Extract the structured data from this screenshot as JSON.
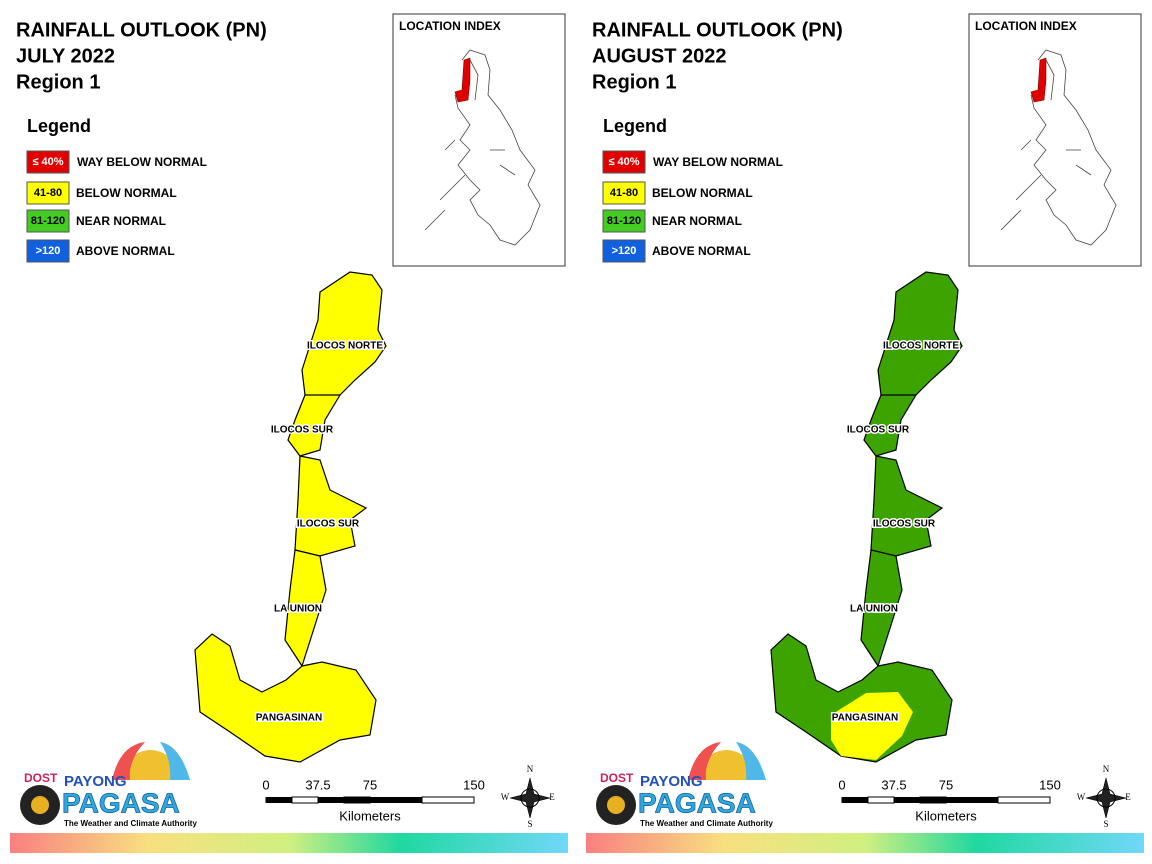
{
  "panels": [
    {
      "title_lines": [
        "RAINFALL OUTLOOK (PN)",
        "JULY 2022",
        "Region 1"
      ],
      "provinces": [
        {
          "name": "ILOCOS NORTE",
          "colors": [
            "#ffff00"
          ]
        },
        {
          "name": "ILOCOS SUR",
          "colors": [
            "#ffff00"
          ]
        },
        {
          "name": "ILOCOS SUR",
          "colors": [
            "#ffff00"
          ]
        },
        {
          "name": "LA UNION",
          "colors": [
            "#ffff00"
          ]
        },
        {
          "name": "PANGASINAN",
          "colors": [
            "#ffff00"
          ]
        }
      ]
    },
    {
      "title_lines": [
        "RAINFALL OUTLOOK (PN)",
        "AUGUST 2022",
        "Region 1"
      ],
      "provinces": [
        {
          "name": "ILOCOS NORTE",
          "colors": [
            "#3ca300"
          ]
        },
        {
          "name": "ILOCOS SUR",
          "colors": [
            "#3ca300"
          ]
        },
        {
          "name": "ILOCOS SUR",
          "colors": [
            "#3ca300"
          ]
        },
        {
          "name": "LA UNION",
          "colors": [
            "#3ca300"
          ]
        },
        {
          "name": "PANGASINAN",
          "colors": [
            "#3ca300",
            "#ffff00"
          ]
        }
      ]
    }
  ],
  "legend": {
    "title": "Legend",
    "items": [
      {
        "label": "≤ 40%",
        "text": "WAY BELOW NORMAL",
        "color": "#e00000"
      },
      {
        "label": "41-80",
        "text": "BELOW NORMAL",
        "color": "#ffff00"
      },
      {
        "label": "81-120",
        "text": "NEAR NORMAL",
        "color": "#44cc22"
      },
      {
        "label": ">120",
        "text": "ABOVE NORMAL",
        "color": "#1060e0"
      }
    ]
  },
  "location_index": "LOCATION INDEX",
  "scale_bar": {
    "ticks": [
      0,
      37.5,
      75,
      150
    ],
    "unit": "Kilometers"
  },
  "compass": [
    "N",
    "E",
    "S",
    "W"
  ],
  "logo": {
    "agency": "DOST",
    "line1": "PAYONG",
    "line2": "PAGASA",
    "tagline": "The Weather and Climate Authority"
  }
}
